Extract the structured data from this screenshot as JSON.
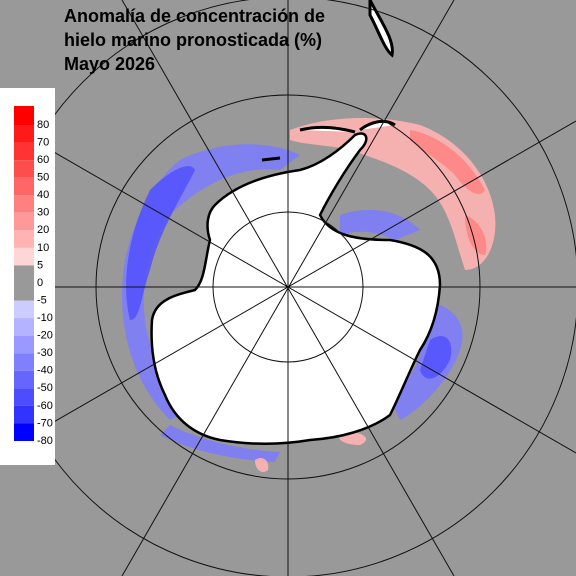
{
  "header": {
    "title_lines": [
      "Anomalía de concentración de",
      "hielo marino pronosticada (%)"
    ],
    "subtitle": "Mayo 2026"
  },
  "colorbar": {
    "labels": [
      "80",
      "70",
      "60",
      "50",
      "40",
      "30",
      "20",
      "10",
      "5",
      "0",
      "-5",
      "-10",
      "-20",
      "-30",
      "-40",
      "-50",
      "-60",
      "-70",
      "-80"
    ],
    "segment_colors": [
      "#ff0000",
      "#ff1a1a",
      "#ff3333",
      "#ff4d4d",
      "#ff6666",
      "#ff8080",
      "#ff9999",
      "#ffb3b3",
      "#ffd6d6",
      "#999999",
      "#999999",
      "#ccccff",
      "#b3b3ff",
      "#9999ff",
      "#8080ff",
      "#6666ff",
      "#4d4dff",
      "#3333ff",
      "#0000ff"
    ]
  }
}
